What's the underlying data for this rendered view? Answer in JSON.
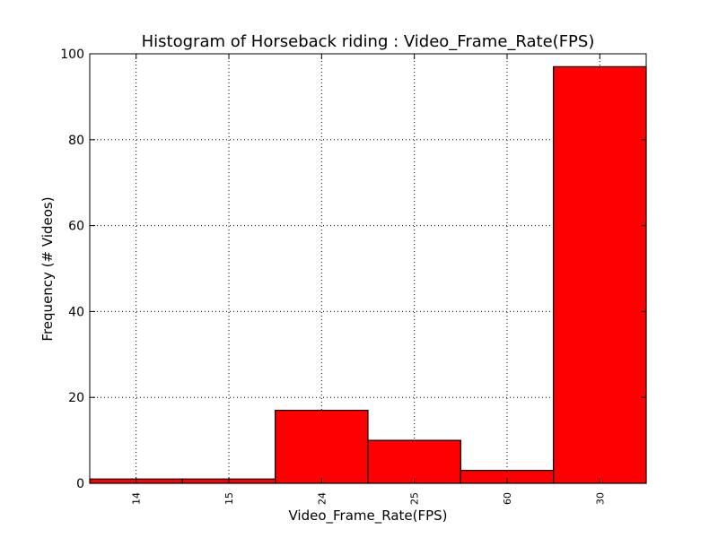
{
  "chart_data": {
    "type": "bar",
    "title": "Histogram of Horseback riding : Video_Frame_Rate(FPS)",
    "xlabel": "Video_Frame_Rate(FPS)",
    "ylabel": "Frequency (# Videos)",
    "categories": [
      "14",
      "15",
      "24",
      "25",
      "60",
      "30"
    ],
    "values": [
      1,
      1,
      17,
      10,
      3,
      97
    ],
    "ylim": [
      0,
      100
    ],
    "yticks": [
      0,
      20,
      40,
      60,
      80,
      100
    ],
    "grid": true,
    "bar_color": "#ff0000",
    "edge_color": "#000000"
  }
}
